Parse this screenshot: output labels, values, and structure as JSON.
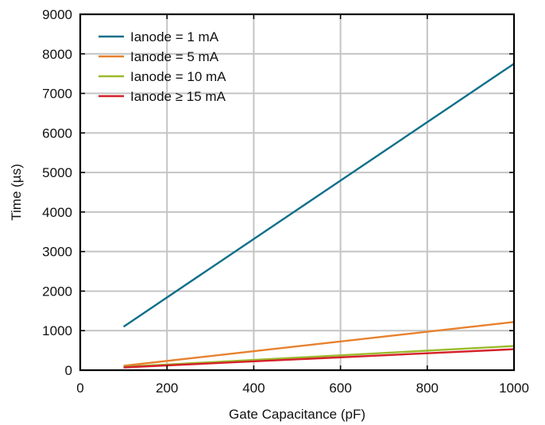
{
  "chart_data": {
    "type": "line",
    "title": "",
    "xlabel": "Gate Capacitance (pF)",
    "ylabel": "Time (µs)",
    "xlim": [
      0,
      1000
    ],
    "ylim": [
      0,
      9000
    ],
    "xticks": [
      0,
      200,
      400,
      600,
      800,
      1000
    ],
    "yticks": [
      0,
      1000,
      2000,
      3000,
      4000,
      5000,
      6000,
      7000,
      8000,
      9000
    ],
    "grid": true,
    "legend_position": "top-left",
    "series": [
      {
        "name": "Ianode = 1 mA",
        "color": "#0e6f8a",
        "x": [
          100,
          1000
        ],
        "y": [
          1100,
          7750
        ]
      },
      {
        "name": "Ianode = 5 mA",
        "color": "#e7812e",
        "x": [
          100,
          1000
        ],
        "y": [
          110,
          1220
        ]
      },
      {
        "name": "Ianode = 10 mA",
        "color": "#9bbb2d",
        "x": [
          100,
          1000
        ],
        "y": [
          85,
          610
        ]
      },
      {
        "name": "Ianode ≥ 15 mA",
        "color": "#d4212a",
        "x": [
          100,
          1000
        ],
        "y": [
          70,
          530
        ]
      }
    ]
  }
}
